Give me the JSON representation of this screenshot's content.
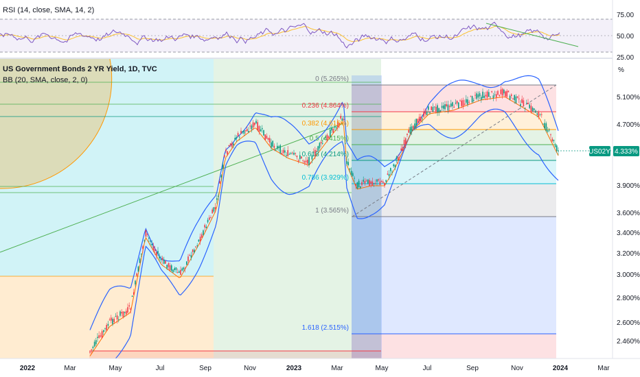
{
  "rsi_panel": {
    "legend": "RSI (14, close, SMA, 14, 2)",
    "levels": [
      "75.00",
      "50.00",
      "25.00"
    ]
  },
  "main_panel": {
    "symbol_legend": "US Government Bonds 2 YR Yield, 1D, TVC",
    "bb_legend": "BB (20, SMA, close, 2, 0)",
    "scale_unit": "%",
    "price_ticks": [
      "5.100%",
      "4.700%",
      "3.900%",
      "3.600%",
      "3.400%",
      "3.200%",
      "3.000%",
      "2.800%",
      "2.600%",
      "2.460%"
    ],
    "last_price": {
      "symbol": "US02Y",
      "value": "4.333%"
    }
  },
  "fib_levels": [
    {
      "label": "0 (5.265%)",
      "color": "#787b86"
    },
    {
      "label": "0.236 (4.864%)",
      "color": "#f23645"
    },
    {
      "label": "0.382 (4.615%)",
      "color": "#ff9800"
    },
    {
      "label": "0.5 (4.415%)",
      "color": "#4caf50"
    },
    {
      "label": "0.618 (4.214%)",
      "color": "#089981"
    },
    {
      "label": "0.786 (3.929%)",
      "color": "#00bcd4"
    },
    {
      "label": "1 (3.565%)",
      "color": "#787b86"
    },
    {
      "label": "1.618 (2.515%)",
      "color": "#2962ff"
    }
  ],
  "time_axis": [
    "2022",
    "Mar",
    "May",
    "Jul",
    "Sep",
    "Nov",
    "2023",
    "Mar",
    "May",
    "Jul",
    "Sep",
    "Nov",
    "2024",
    "Mar"
  ],
  "colors": {
    "candle_up": "#089981",
    "candle_down": "#f23645",
    "bb_band": "#2962ff",
    "bb_basis": "#ff6d00",
    "rsi_line": "#7e57c2",
    "rsi_ma": "#fbc02d",
    "rsi_fill": "#7e57c2",
    "trendline": "#4caf50",
    "price_tag": "#089981"
  }
}
